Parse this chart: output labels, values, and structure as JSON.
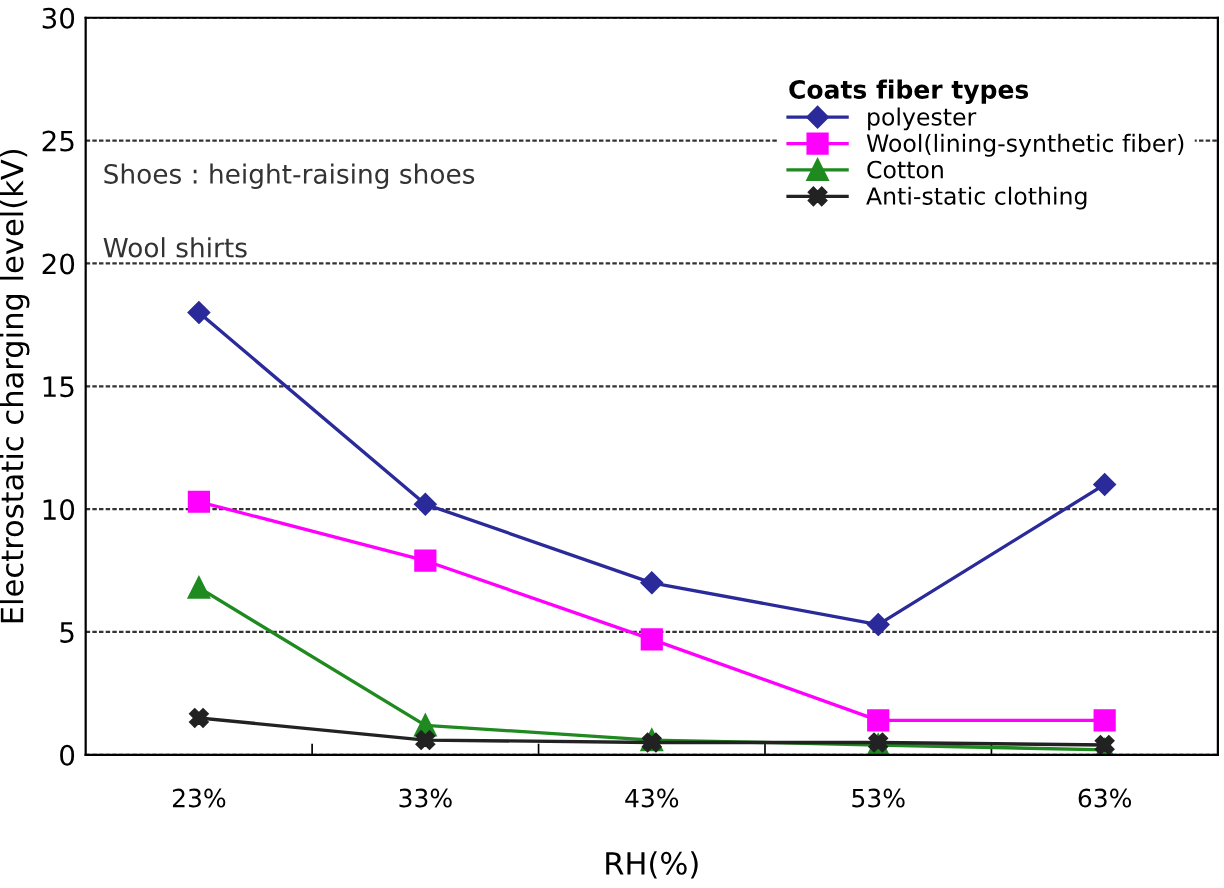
{
  "chart_data": {
    "type": "line",
    "xlabel": "RH(%)",
    "ylabel": "Electrostatic charging level(kV)",
    "categories": [
      "23%",
      "33%",
      "43%",
      "53%",
      "63%"
    ],
    "series": [
      {
        "name": "polyester",
        "color": "#2a2a9a",
        "marker": "diamond",
        "values": [
          18.0,
          10.2,
          7.0,
          5.3,
          11.0
        ]
      },
      {
        "name": "Wool(lining-synthetic fiber)",
        "color": "#ff00ff",
        "marker": "square",
        "values": [
          10.3,
          7.9,
          4.7,
          1.4,
          1.4
        ]
      },
      {
        "name": "Cotton",
        "color": "#1f8a1f",
        "marker": "triangle",
        "values": [
          6.8,
          1.2,
          0.6,
          0.4,
          0.2
        ]
      },
      {
        "name": "Anti-static clothing",
        "color": "#222222",
        "marker": "cross",
        "values": [
          1.5,
          0.6,
          0.5,
          0.5,
          0.4
        ]
      }
    ],
    "ylim": [
      0,
      30
    ],
    "yticks": [
      0,
      5,
      10,
      15,
      20,
      25,
      30
    ],
    "grid": "y",
    "legend": "top right",
    "legend_title": "Coats fiber types",
    "annotations": [
      "Shoes : height-raising shoes",
      "Wool shirts"
    ]
  }
}
